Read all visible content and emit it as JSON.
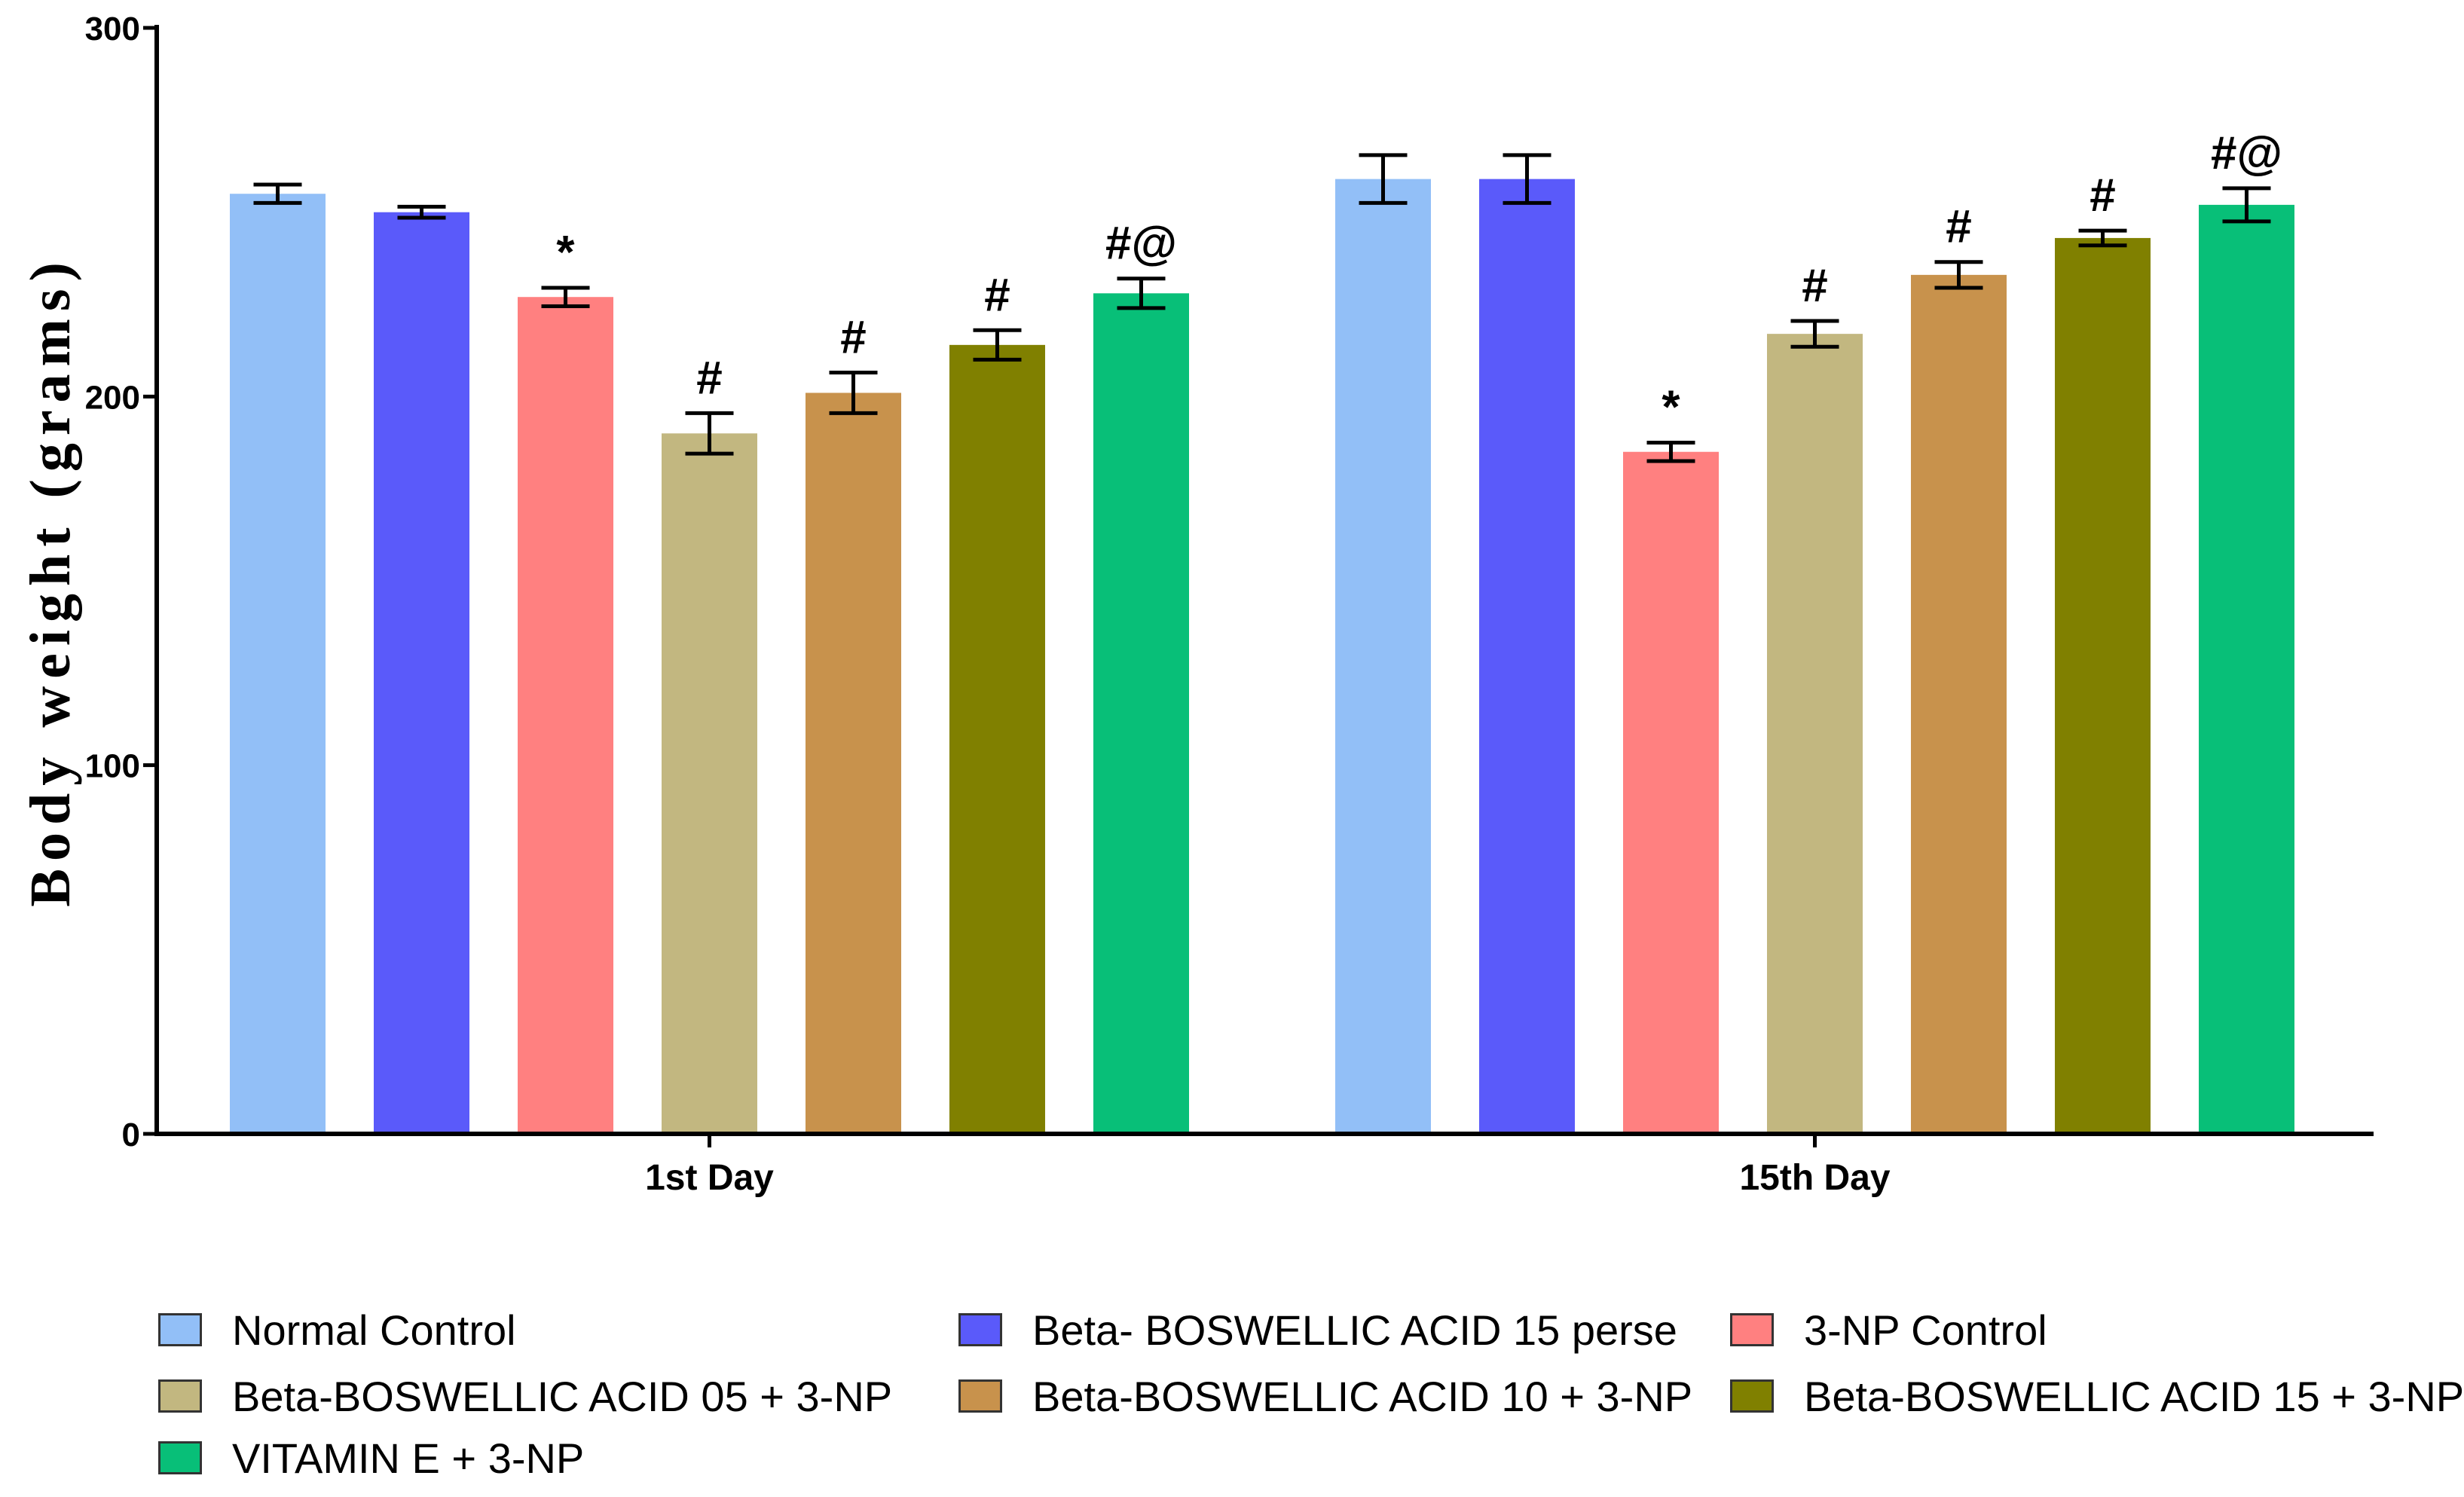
{
  "chart_data": {
    "type": "bar",
    "title": "",
    "xlabel": "",
    "ylabel": "Body weight (grams)",
    "ylim": [
      0,
      300
    ],
    "yticks": [
      0,
      100,
      200,
      300
    ],
    "ytick_labels": [
      "0",
      "100",
      "200",
      "300"
    ],
    "grid": false,
    "legend_position": "bottom",
    "categories": [
      "1st Day",
      "15th Day"
    ],
    "series": [
      {
        "name": "Normal Control",
        "color": "#92BFF7",
        "values": [
          255,
          259
        ],
        "errors": [
          2.5,
          6.5
        ],
        "annotations": [
          "",
          ""
        ]
      },
      {
        "name": "Beta- BOSWELLIC ACID 15 perse",
        "color": "#5A5AFA",
        "values": [
          250,
          259
        ],
        "errors": [
          1.5,
          6.5
        ],
        "annotations": [
          "",
          ""
        ]
      },
      {
        "name": "3-NP Control",
        "color": "#FF8080",
        "values": [
          227,
          185
        ],
        "errors": [
          2.5,
          2.5
        ],
        "annotations": [
          "*",
          "*"
        ]
      },
      {
        "name": "Beta-BOSWELLIC ACID 05 + 3-NP",
        "color": "#C2B780",
        "values": [
          190,
          217
        ],
        "errors": [
          5.5,
          3.5
        ],
        "annotations": [
          "#",
          "#"
        ]
      },
      {
        "name": "Beta-BOSWELLIC ACID 10 + 3-NP",
        "color": "#C8924C",
        "values": [
          201,
          233
        ],
        "errors": [
          5.5,
          3.5
        ],
        "annotations": [
          "#",
          "#"
        ]
      },
      {
        "name": "Beta-BOSWELLIC ACID 15 + 3-NP",
        "color": "#808000",
        "values": [
          214,
          243
        ],
        "errors": [
          4,
          2
        ],
        "annotations": [
          "#",
          "#"
        ]
      },
      {
        "name": "VITAMIN E + 3-NP",
        "color": "#08BF78",
        "values": [
          228,
          252
        ],
        "errors": [
          4,
          4.5
        ],
        "annotations": [
          "#@",
          "#@"
        ]
      }
    ]
  }
}
